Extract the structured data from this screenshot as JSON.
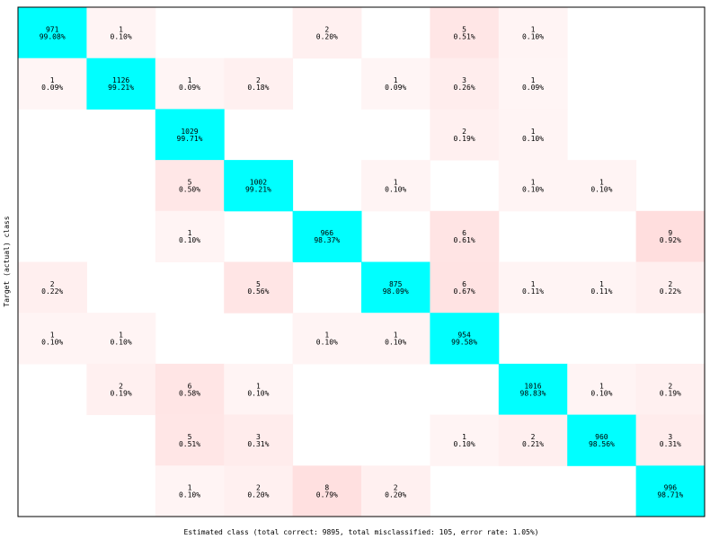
{
  "chart_data": {
    "type": "heatmap",
    "title": "",
    "xlabel": "Estimated class (total correct: 9895, total misclassified: 105, error rate: 1.05%)",
    "ylabel": "Target (actual) class",
    "n_classes": 10,
    "cells": [
      {
        "row": 0,
        "col": 0,
        "count": "971",
        "pct": "99.08%"
      },
      {
        "row": 0,
        "col": 1,
        "count": "1",
        "pct": "0.10%"
      },
      {
        "row": 0,
        "col": 4,
        "count": "2",
        "pct": "0.20%"
      },
      {
        "row": 0,
        "col": 6,
        "count": "5",
        "pct": "0.51%"
      },
      {
        "row": 0,
        "col": 7,
        "count": "1",
        "pct": "0.10%"
      },
      {
        "row": 1,
        "col": 0,
        "count": "1",
        "pct": "0.09%"
      },
      {
        "row": 1,
        "col": 1,
        "count": "1126",
        "pct": "99.21%"
      },
      {
        "row": 1,
        "col": 2,
        "count": "1",
        "pct": "0.09%"
      },
      {
        "row": 1,
        "col": 3,
        "count": "2",
        "pct": "0.18%"
      },
      {
        "row": 1,
        "col": 5,
        "count": "1",
        "pct": "0.09%"
      },
      {
        "row": 1,
        "col": 6,
        "count": "3",
        "pct": "0.26%"
      },
      {
        "row": 1,
        "col": 7,
        "count": "1",
        "pct": "0.09%"
      },
      {
        "row": 2,
        "col": 2,
        "count": "1029",
        "pct": "99.71%"
      },
      {
        "row": 2,
        "col": 6,
        "count": "2",
        "pct": "0.19%"
      },
      {
        "row": 2,
        "col": 7,
        "count": "1",
        "pct": "0.10%"
      },
      {
        "row": 3,
        "col": 2,
        "count": "5",
        "pct": "0.50%"
      },
      {
        "row": 3,
        "col": 3,
        "count": "1002",
        "pct": "99.21%"
      },
      {
        "row": 3,
        "col": 5,
        "count": "1",
        "pct": "0.10%"
      },
      {
        "row": 3,
        "col": 7,
        "count": "1",
        "pct": "0.10%"
      },
      {
        "row": 3,
        "col": 8,
        "count": "1",
        "pct": "0.10%"
      },
      {
        "row": 4,
        "col": 2,
        "count": "1",
        "pct": "0.10%"
      },
      {
        "row": 4,
        "col": 4,
        "count": "966",
        "pct": "98.37%"
      },
      {
        "row": 4,
        "col": 6,
        "count": "6",
        "pct": "0.61%"
      },
      {
        "row": 4,
        "col": 9,
        "count": "9",
        "pct": "0.92%"
      },
      {
        "row": 5,
        "col": 0,
        "count": "2",
        "pct": "0.22%"
      },
      {
        "row": 5,
        "col": 3,
        "count": "5",
        "pct": "0.56%"
      },
      {
        "row": 5,
        "col": 5,
        "count": "875",
        "pct": "98.09%"
      },
      {
        "row": 5,
        "col": 6,
        "count": "6",
        "pct": "0.67%"
      },
      {
        "row": 5,
        "col": 7,
        "count": "1",
        "pct": "0.11%"
      },
      {
        "row": 5,
        "col": 8,
        "count": "1",
        "pct": "0.11%"
      },
      {
        "row": 5,
        "col": 9,
        "count": "2",
        "pct": "0.22%"
      },
      {
        "row": 6,
        "col": 0,
        "count": "1",
        "pct": "0.10%"
      },
      {
        "row": 6,
        "col": 1,
        "count": "1",
        "pct": "0.10%"
      },
      {
        "row": 6,
        "col": 4,
        "count": "1",
        "pct": "0.10%"
      },
      {
        "row": 6,
        "col": 5,
        "count": "1",
        "pct": "0.10%"
      },
      {
        "row": 6,
        "col": 6,
        "count": "954",
        "pct": "99.58%"
      },
      {
        "row": 7,
        "col": 1,
        "count": "2",
        "pct": "0.19%"
      },
      {
        "row": 7,
        "col": 2,
        "count": "6",
        "pct": "0.58%"
      },
      {
        "row": 7,
        "col": 3,
        "count": "1",
        "pct": "0.10%"
      },
      {
        "row": 7,
        "col": 7,
        "count": "1016",
        "pct": "98.83%"
      },
      {
        "row": 7,
        "col": 8,
        "count": "1",
        "pct": "0.10%"
      },
      {
        "row": 7,
        "col": 9,
        "count": "2",
        "pct": "0.19%"
      },
      {
        "row": 8,
        "col": 2,
        "count": "5",
        "pct": "0.51%"
      },
      {
        "row": 8,
        "col": 3,
        "count": "3",
        "pct": "0.31%"
      },
      {
        "row": 8,
        "col": 6,
        "count": "1",
        "pct": "0.10%"
      },
      {
        "row": 8,
        "col": 7,
        "count": "2",
        "pct": "0.21%"
      },
      {
        "row": 8,
        "col": 8,
        "count": "960",
        "pct": "98.56%"
      },
      {
        "row": 8,
        "col": 9,
        "count": "3",
        "pct": "0.31%"
      },
      {
        "row": 9,
        "col": 2,
        "count": "1",
        "pct": "0.10%"
      },
      {
        "row": 9,
        "col": 3,
        "count": "2",
        "pct": "0.20%"
      },
      {
        "row": 9,
        "col": 4,
        "count": "8",
        "pct": "0.79%"
      },
      {
        "row": 9,
        "col": 5,
        "count": "2",
        "pct": "0.20%"
      },
      {
        "row": 9,
        "col": 9,
        "count": "996",
        "pct": "98.71%"
      }
    ],
    "colors": {
      "diagonal": "#00ffff",
      "off_diagonal_max": "#ffdede",
      "background": "#ffffff",
      "border": "#000000"
    },
    "legend": "none",
    "grid": false
  }
}
